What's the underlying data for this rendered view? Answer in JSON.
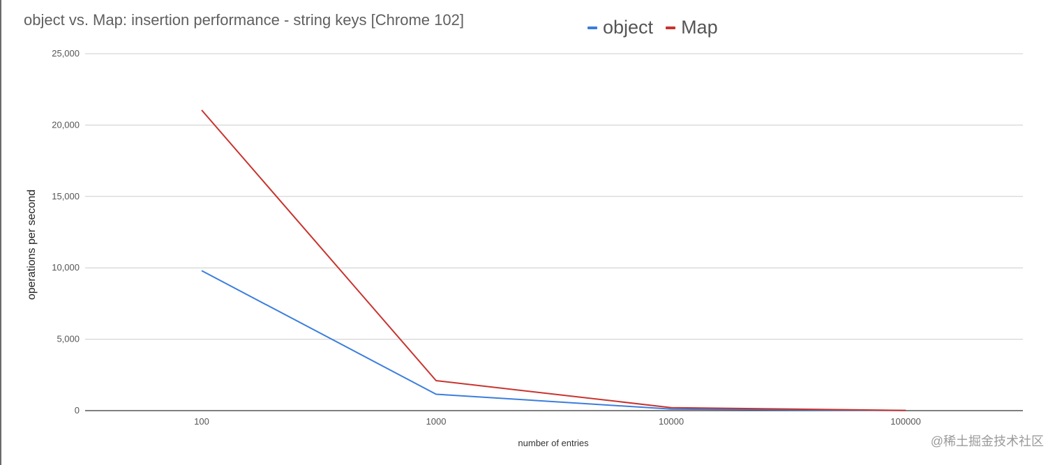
{
  "chart_data": {
    "type": "line",
    "title": "object vs. Map: insertion performance - string keys [Chrome 102]",
    "xlabel": "number of entries",
    "ylabel": "operations per second",
    "categories": [
      "100",
      "1000",
      "10000",
      "100000"
    ],
    "series": [
      {
        "name": "object",
        "color": "#3b7ddd",
        "values": [
          9800,
          1150,
          110,
          10
        ]
      },
      {
        "name": "Map",
        "color": "#c8332e",
        "values": [
          21050,
          2100,
          210,
          15
        ]
      }
    ],
    "ylim": [
      0,
      25000
    ],
    "yticks": [
      0,
      5000,
      10000,
      15000,
      20000,
      25000
    ],
    "ytick_labels": [
      "0",
      "5,000",
      "10,000",
      "15,000",
      "20,000",
      "25,000"
    ],
    "grid": true,
    "legend_position": "top"
  },
  "watermark": "@稀土掘金技术社区"
}
